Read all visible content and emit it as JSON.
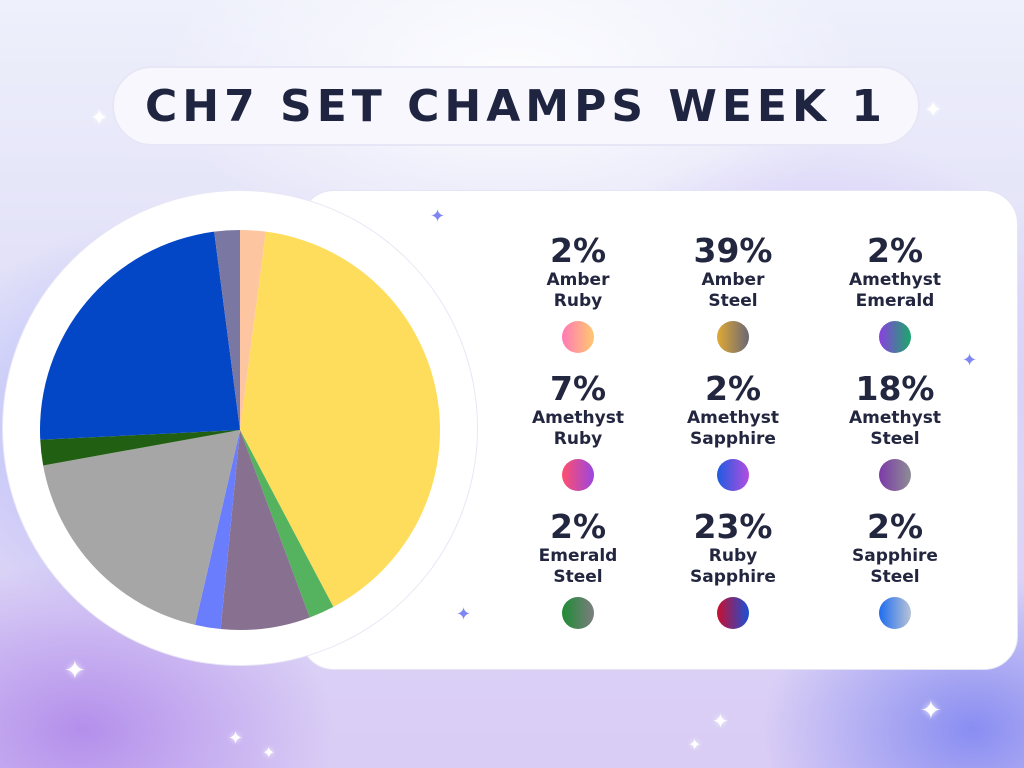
{
  "title": "CH7 SET CHAMPS WEEK 1",
  "chart_data": {
    "type": "pie",
    "title": "CH7 SET CHAMPS WEEK 1",
    "slices": [
      {
        "label": "Amber Ruby",
        "line1": "Amber",
        "line2": "Ruby",
        "value": 2,
        "display": "2%",
        "color": "#fdc6a0",
        "grad": [
          "#ff7ab6",
          "#ffc870"
        ]
      },
      {
        "label": "Amber Steel",
        "line1": "Amber",
        "line2": "Steel",
        "value": 39,
        "display": "39%",
        "color": "#ffdd5c",
        "grad": [
          "#e0a934",
          "#6b6775"
        ]
      },
      {
        "label": "Amethyst Emerald",
        "line1": "Amethyst",
        "line2": "Emerald",
        "value": 2,
        "display": "2%",
        "color": "#55b35f",
        "grad": [
          "#8b3fe0",
          "#1aa86a"
        ]
      },
      {
        "label": "Amethyst Ruby",
        "line1": "Amethyst",
        "line2": "Ruby",
        "value": 7,
        "display": "7%",
        "color": "#877090",
        "grad": [
          "#ff4f6d",
          "#9b46e0"
        ]
      },
      {
        "label": "Amethyst Sapphire",
        "line1": "Amethyst",
        "line2": "Sapphire",
        "value": 2,
        "display": "2%",
        "color": "#6a7dfc",
        "grad": [
          "#1e5ce0",
          "#b24de0"
        ]
      },
      {
        "label": "Amethyst Steel",
        "line1": "Amethyst",
        "line2": "Steel",
        "value": 18,
        "display": "18%",
        "color": "#a6a6a6",
        "grad": [
          "#7c3aa8",
          "#8d8d95"
        ]
      },
      {
        "label": "Emerald Steel",
        "line1": "Emerald",
        "line2": "Steel",
        "value": 2,
        "display": "2%",
        "color": "#216012",
        "grad": [
          "#1e8c34",
          "#7d7d80"
        ]
      },
      {
        "label": "Ruby Sapphire",
        "line1": "Ruby",
        "line2": "Sapphire",
        "value": 23,
        "display": "23%",
        "color": "#0346c6",
        "grad": [
          "#c8102e",
          "#1a4fd6"
        ]
      },
      {
        "label": "Sapphire Steel",
        "line1": "Sapphire",
        "line2": "Steel",
        "value": 2,
        "display": "2%",
        "color": "#7a78a2",
        "grad": [
          "#1e6df0",
          "#b9c3d6"
        ]
      }
    ],
    "start_angle_deg": 0,
    "direction": "clockwise",
    "legend": "right"
  }
}
